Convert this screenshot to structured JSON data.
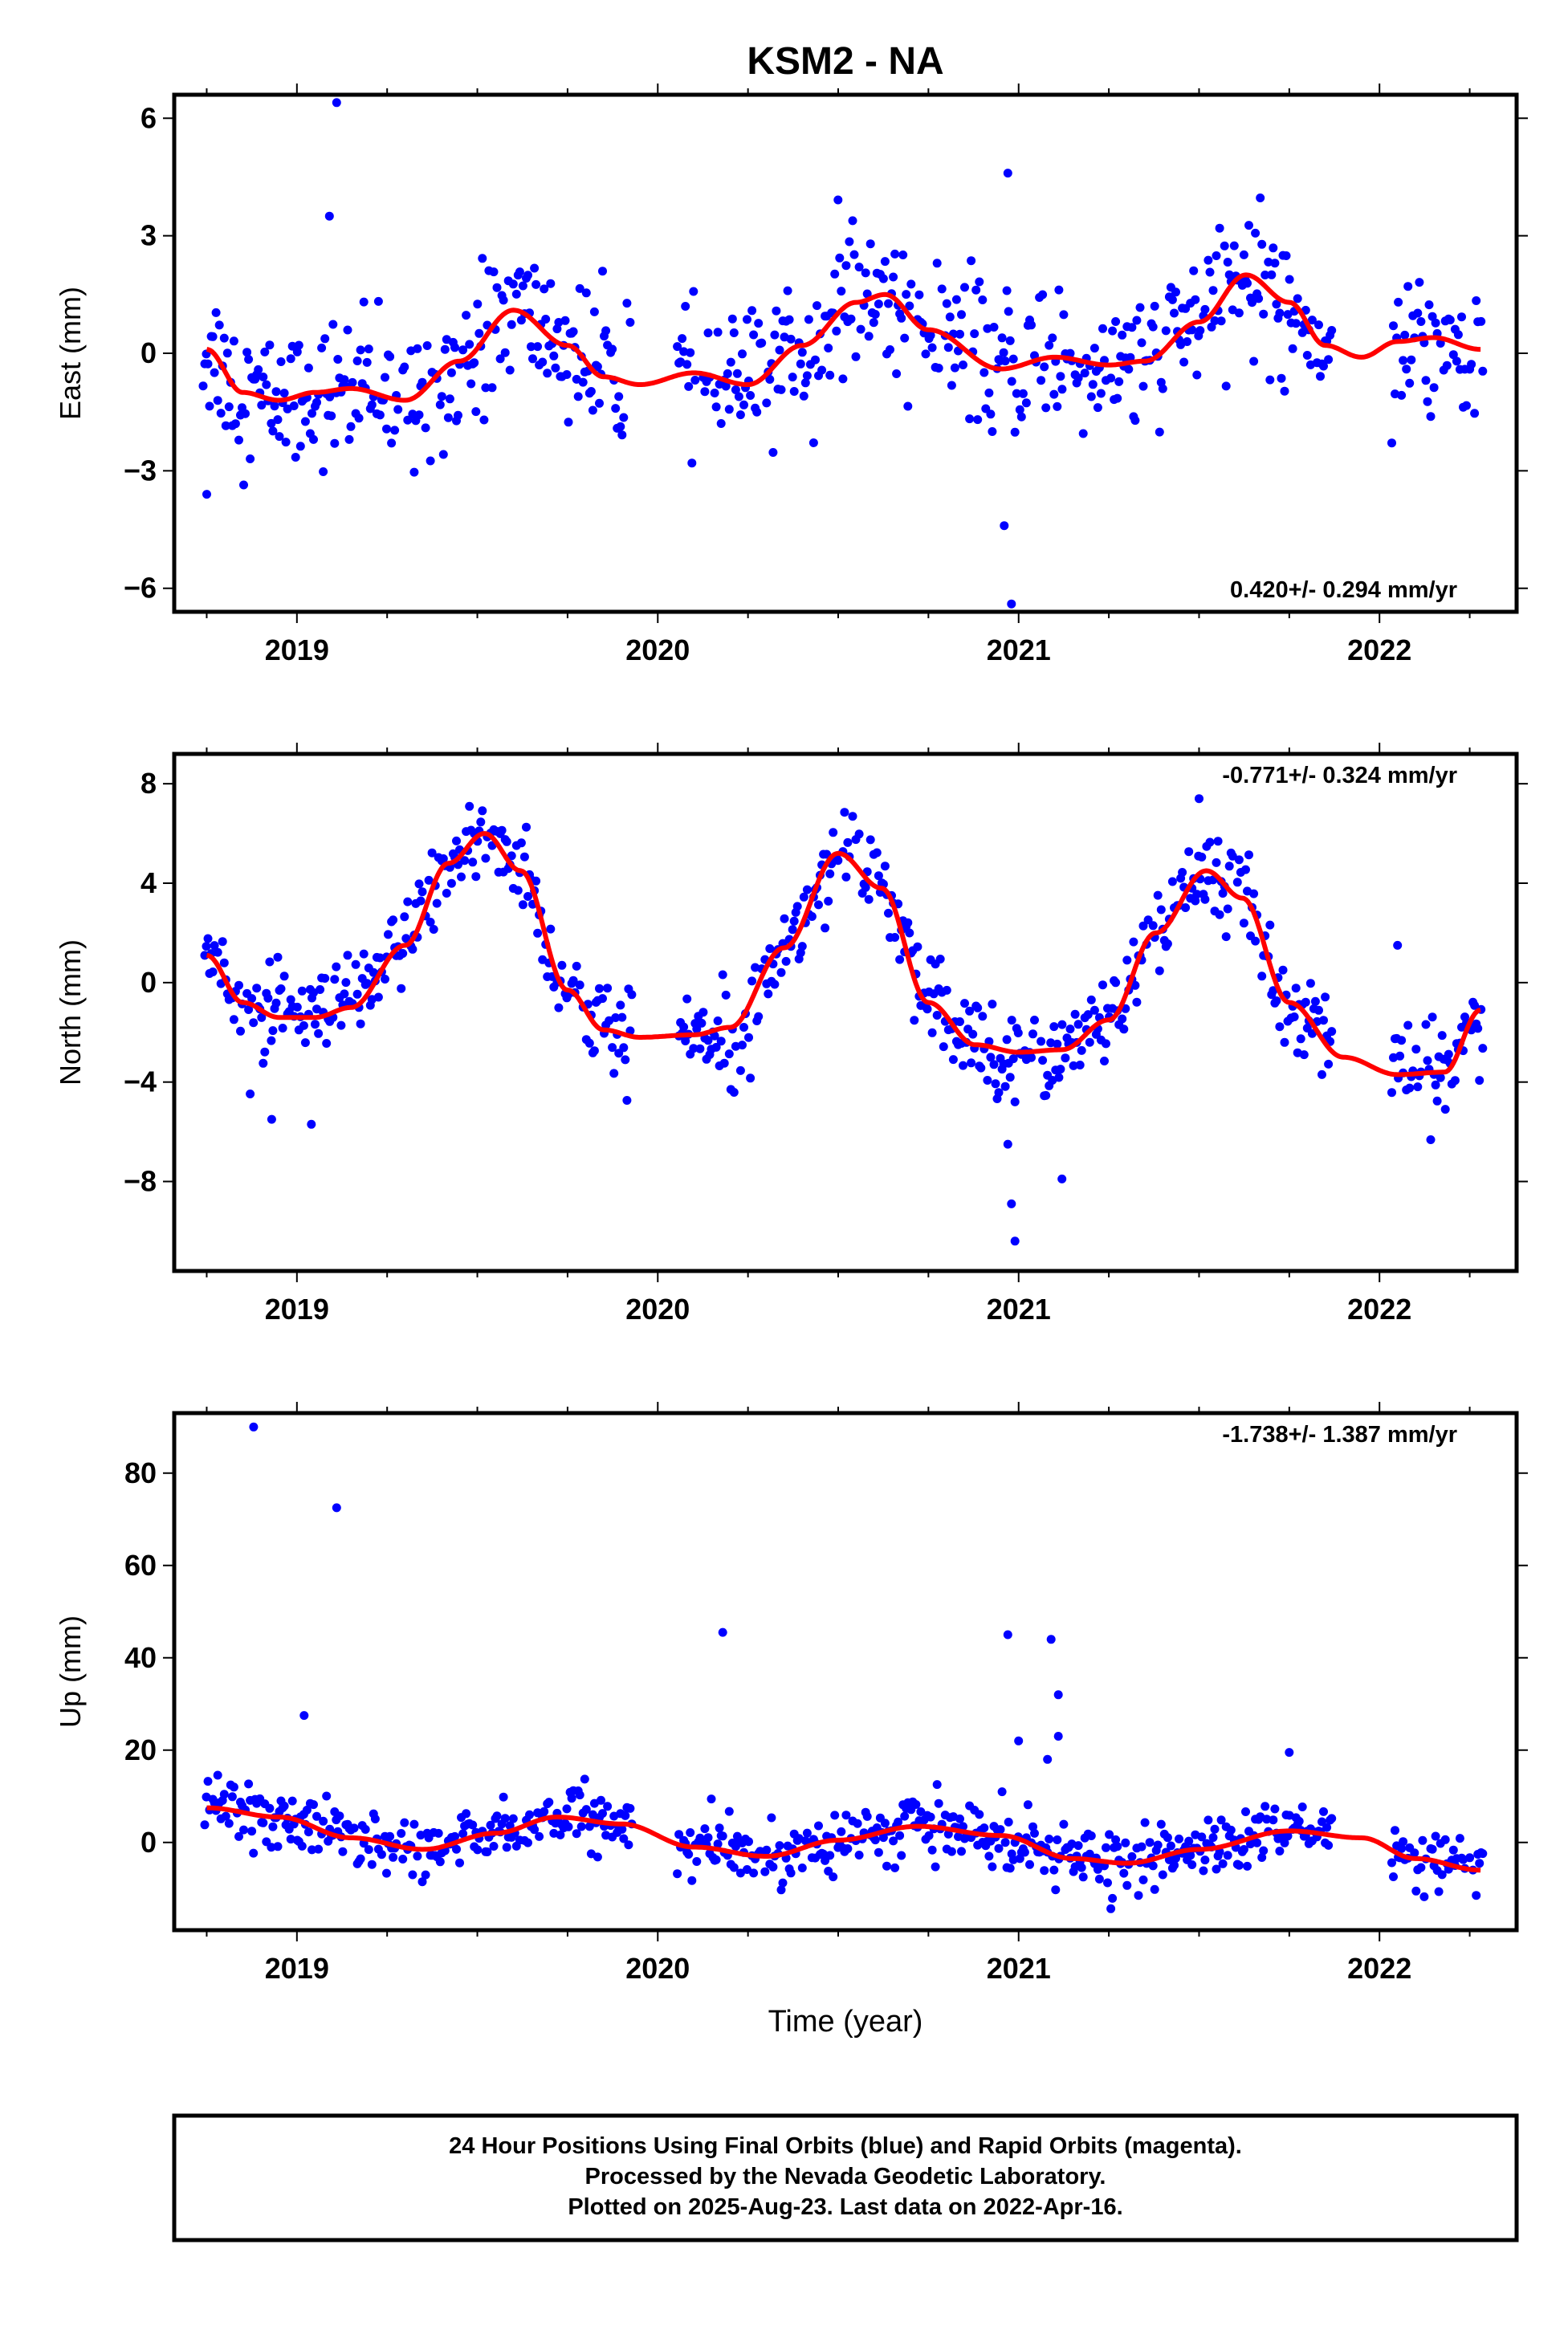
{
  "title": "KSM2 - NA",
  "colors": {
    "data": "#0000ff",
    "fit": "#ff0000",
    "frame": "#000000"
  },
  "xlabel": "Time (year)",
  "footer": {
    "line1": "24 Hour Positions Using Final Orbits (blue) and Rapid Orbits (magenta).",
    "line2": "Processed by the Nevada Geodetic Laboratory.",
    "line3": "Plotted on 2025-Aug-23. Last data on 2022-Apr-16."
  },
  "chart_data": [
    {
      "type": "scatter",
      "component": "east",
      "ylabel": "East (mm)",
      "velocity_label": "0.420+/- 0.294 mm/yr",
      "velocity_label_position": "bottom-right",
      "xlim": [
        2018.66,
        2022.38
      ],
      "ylim": [
        -6.6,
        6.6
      ],
      "x_ticks": [
        2019,
        2020,
        2021,
        2022
      ],
      "y_ticks": [
        -6,
        -3,
        0,
        3,
        6
      ],
      "y_tick_labels": [
        "−6",
        "−3",
        "0",
        "3",
        "6"
      ],
      "fit": {
        "x": [
          2018.75,
          2018.85,
          2018.95,
          2019.05,
          2019.15,
          2019.3,
          2019.45,
          2019.6,
          2019.75,
          2019.85,
          2019.95,
          2020.1,
          2020.25,
          2020.4,
          2020.55,
          2020.63,
          2020.75,
          2020.95,
          2021.1,
          2021.25,
          2021.35,
          2021.5,
          2021.63,
          2021.75,
          2021.85,
          2021.95,
          2022.05,
          2022.15,
          2022.28
        ],
        "y": [
          0.1,
          -1.0,
          -1.2,
          -1.0,
          -0.9,
          -1.2,
          -0.2,
          1.1,
          0.2,
          -0.6,
          -0.8,
          -0.5,
          -0.8,
          0.2,
          1.3,
          1.5,
          0.6,
          -0.4,
          -0.1,
          -0.3,
          -0.2,
          0.8,
          2.0,
          1.3,
          0.2,
          -0.1,
          0.3,
          0.4,
          0.1
        ]
      },
      "outliers": {
        "x": [
          2019.11,
          2019.09,
          2020.97,
          2020.98,
          2020.96,
          2018.75
        ],
        "y": [
          6.4,
          3.5,
          4.6,
          -6.4,
          -4.4,
          -3.6
        ]
      },
      "scatter_sd": 0.9
    },
    {
      "type": "scatter",
      "component": "north",
      "ylabel": "North (mm)",
      "velocity_label": "-0.771+/- 0.324 mm/yr",
      "velocity_label_position": "top-right",
      "xlim": [
        2018.66,
        2022.38
      ],
      "ylim": [
        -11.6,
        9.2
      ],
      "x_ticks": [
        2019,
        2020,
        2021,
        2022
      ],
      "y_ticks": [
        -8,
        -4,
        0,
        4,
        8
      ],
      "y_tick_labels": [
        "−8",
        "−4",
        "0",
        "4",
        "8"
      ],
      "fit": {
        "x": [
          2018.75,
          2018.85,
          2018.95,
          2019.05,
          2019.15,
          2019.3,
          2019.42,
          2019.52,
          2019.62,
          2019.75,
          2019.85,
          2019.95,
          2020.1,
          2020.2,
          2020.35,
          2020.5,
          2020.62,
          2020.75,
          2020.88,
          2021.0,
          2021.12,
          2021.25,
          2021.38,
          2021.52,
          2021.62,
          2021.75,
          2021.9,
          2022.05,
          2022.18,
          2022.28
        ],
        "y": [
          1.1,
          -0.8,
          -1.4,
          -1.4,
          -1.0,
          1.5,
          4.8,
          6.0,
          4.5,
          -0.3,
          -1.9,
          -2.2,
          -2.1,
          -1.8,
          1.4,
          5.2,
          3.8,
          -0.8,
          -2.5,
          -2.8,
          -2.7,
          -1.5,
          2.0,
          4.5,
          3.4,
          -0.8,
          -3.0,
          -3.7,
          -3.6,
          -1.1
        ]
      },
      "outliers": {
        "x": [
          2018.93,
          2019.04,
          2020.97,
          2020.98,
          2020.99,
          2021.12,
          2022.05,
          2021.5
        ],
        "y": [
          -5.5,
          -5.7,
          -6.5,
          -8.9,
          -10.4,
          -7.9,
          1.5,
          7.4
        ]
      },
      "scatter_sd": 0.9
    },
    {
      "type": "scatter",
      "component": "up",
      "ylabel": "Up (mm)",
      "velocity_label": "-1.738+/- 1.387 mm/yr",
      "velocity_label_position": "top-right",
      "xlim": [
        2018.66,
        2022.38
      ],
      "ylim": [
        -19,
        93
      ],
      "x_ticks": [
        2019,
        2020,
        2021,
        2022
      ],
      "y_ticks": [
        0,
        20,
        40,
        60,
        80
      ],
      "y_tick_labels": [
        "0",
        "20",
        "40",
        "60",
        "80"
      ],
      "fit": {
        "x": [
          2018.75,
          2018.95,
          2019.15,
          2019.35,
          2019.55,
          2019.72,
          2019.9,
          2020.1,
          2020.3,
          2020.5,
          2020.72,
          2020.95,
          2021.15,
          2021.3,
          2021.5,
          2021.75,
          2021.95,
          2022.1,
          2022.28
        ],
        "y": [
          7.5,
          5.5,
          1.0,
          -1.5,
          2.0,
          5.5,
          4.0,
          -1.0,
          -3.0,
          0.5,
          3.5,
          1.5,
          -3.5,
          -4.5,
          -1.5,
          2.5,
          1.0,
          -3.5,
          -6.0
        ]
      },
      "outliers": {
        "x": [
          2018.88,
          2019.11,
          2020.18,
          2020.97,
          2021.09,
          2021.11,
          2021.11,
          2019.02,
          2021.0,
          2021.08,
          2021.75
        ],
        "y": [
          90,
          72.5,
          45.5,
          45,
          44,
          32,
          23,
          27.5,
          22,
          18,
          19.5
        ]
      },
      "scatter_sd": 3.2
    }
  ]
}
